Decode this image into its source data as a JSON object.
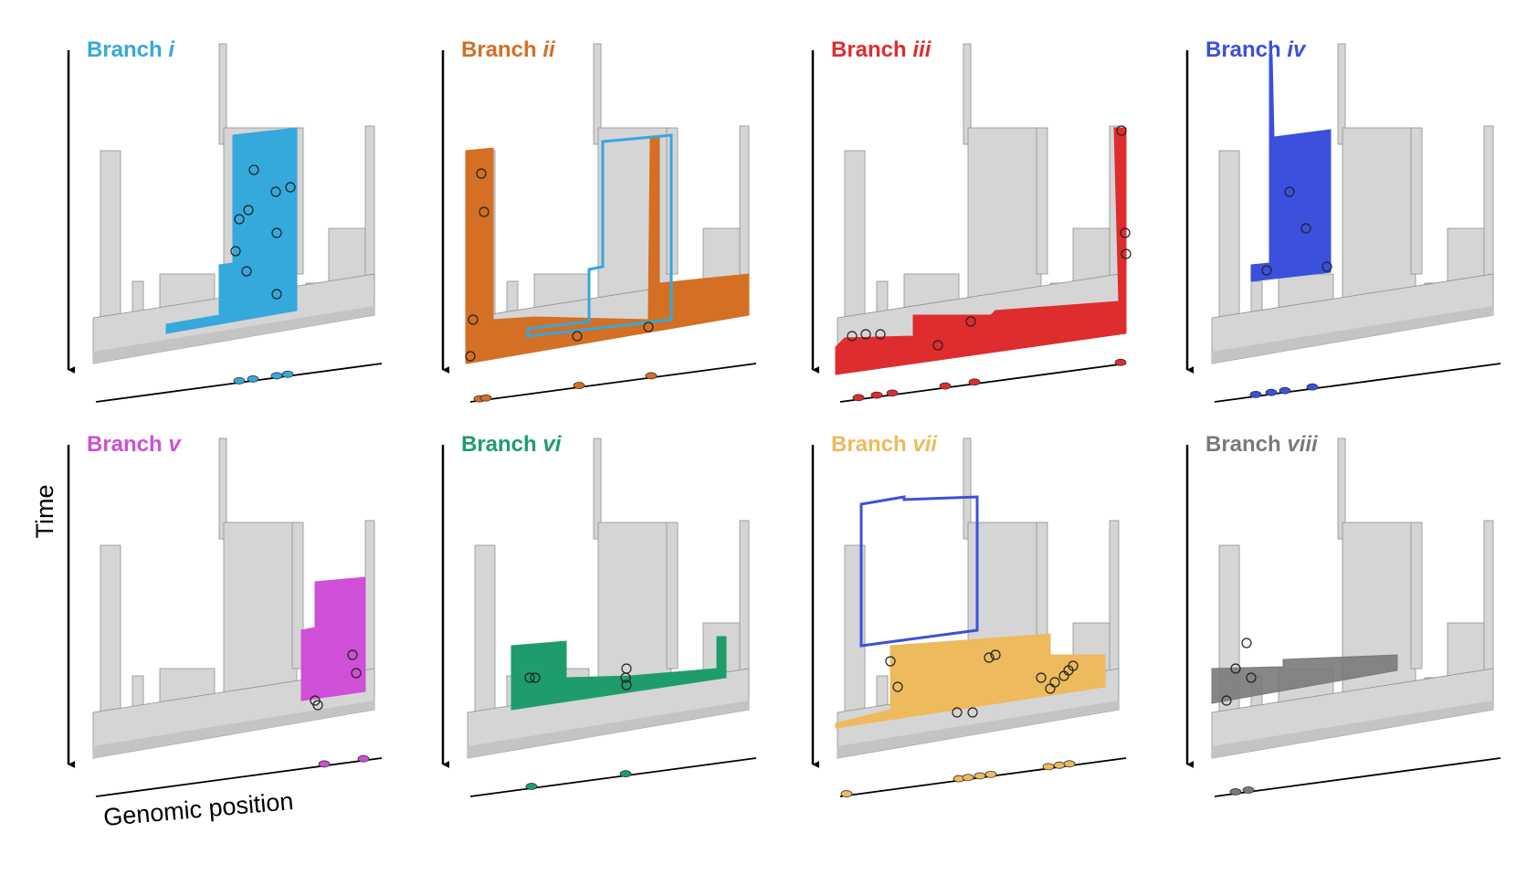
{
  "figure": {
    "y_axis_label": "Time",
    "x_axis_label": "Genomic position"
  },
  "panels": [
    {
      "id": "i",
      "prefix": "Branch",
      "numeral": "i",
      "color": "#35a8dc"
    },
    {
      "id": "ii",
      "prefix": "Branch",
      "numeral": "ii",
      "color": "#d46f23"
    },
    {
      "id": "iii",
      "prefix": "Branch",
      "numeral": "iii",
      "color": "#df2c2f"
    },
    {
      "id": "iv",
      "prefix": "Branch",
      "numeral": "iv",
      "color": "#3b50dd"
    },
    {
      "id": "v",
      "prefix": "Branch",
      "numeral": "v",
      "color": "#cf4fd6"
    },
    {
      "id": "vi",
      "prefix": "Branch",
      "numeral": "vi",
      "color": "#1f9c6c"
    },
    {
      "id": "vii",
      "prefix": "Branch",
      "numeral": "vii",
      "color": "#edba5e"
    },
    {
      "id": "viii",
      "prefix": "Branch",
      "numeral": "viii",
      "color": "#7a7a7a"
    }
  ],
  "palette": {
    "tree_gray": "#d5d5d5",
    "tree_edge": "#8f8f8f",
    "tree_dark": "#9a9a9a",
    "ink": "#000000"
  }
}
